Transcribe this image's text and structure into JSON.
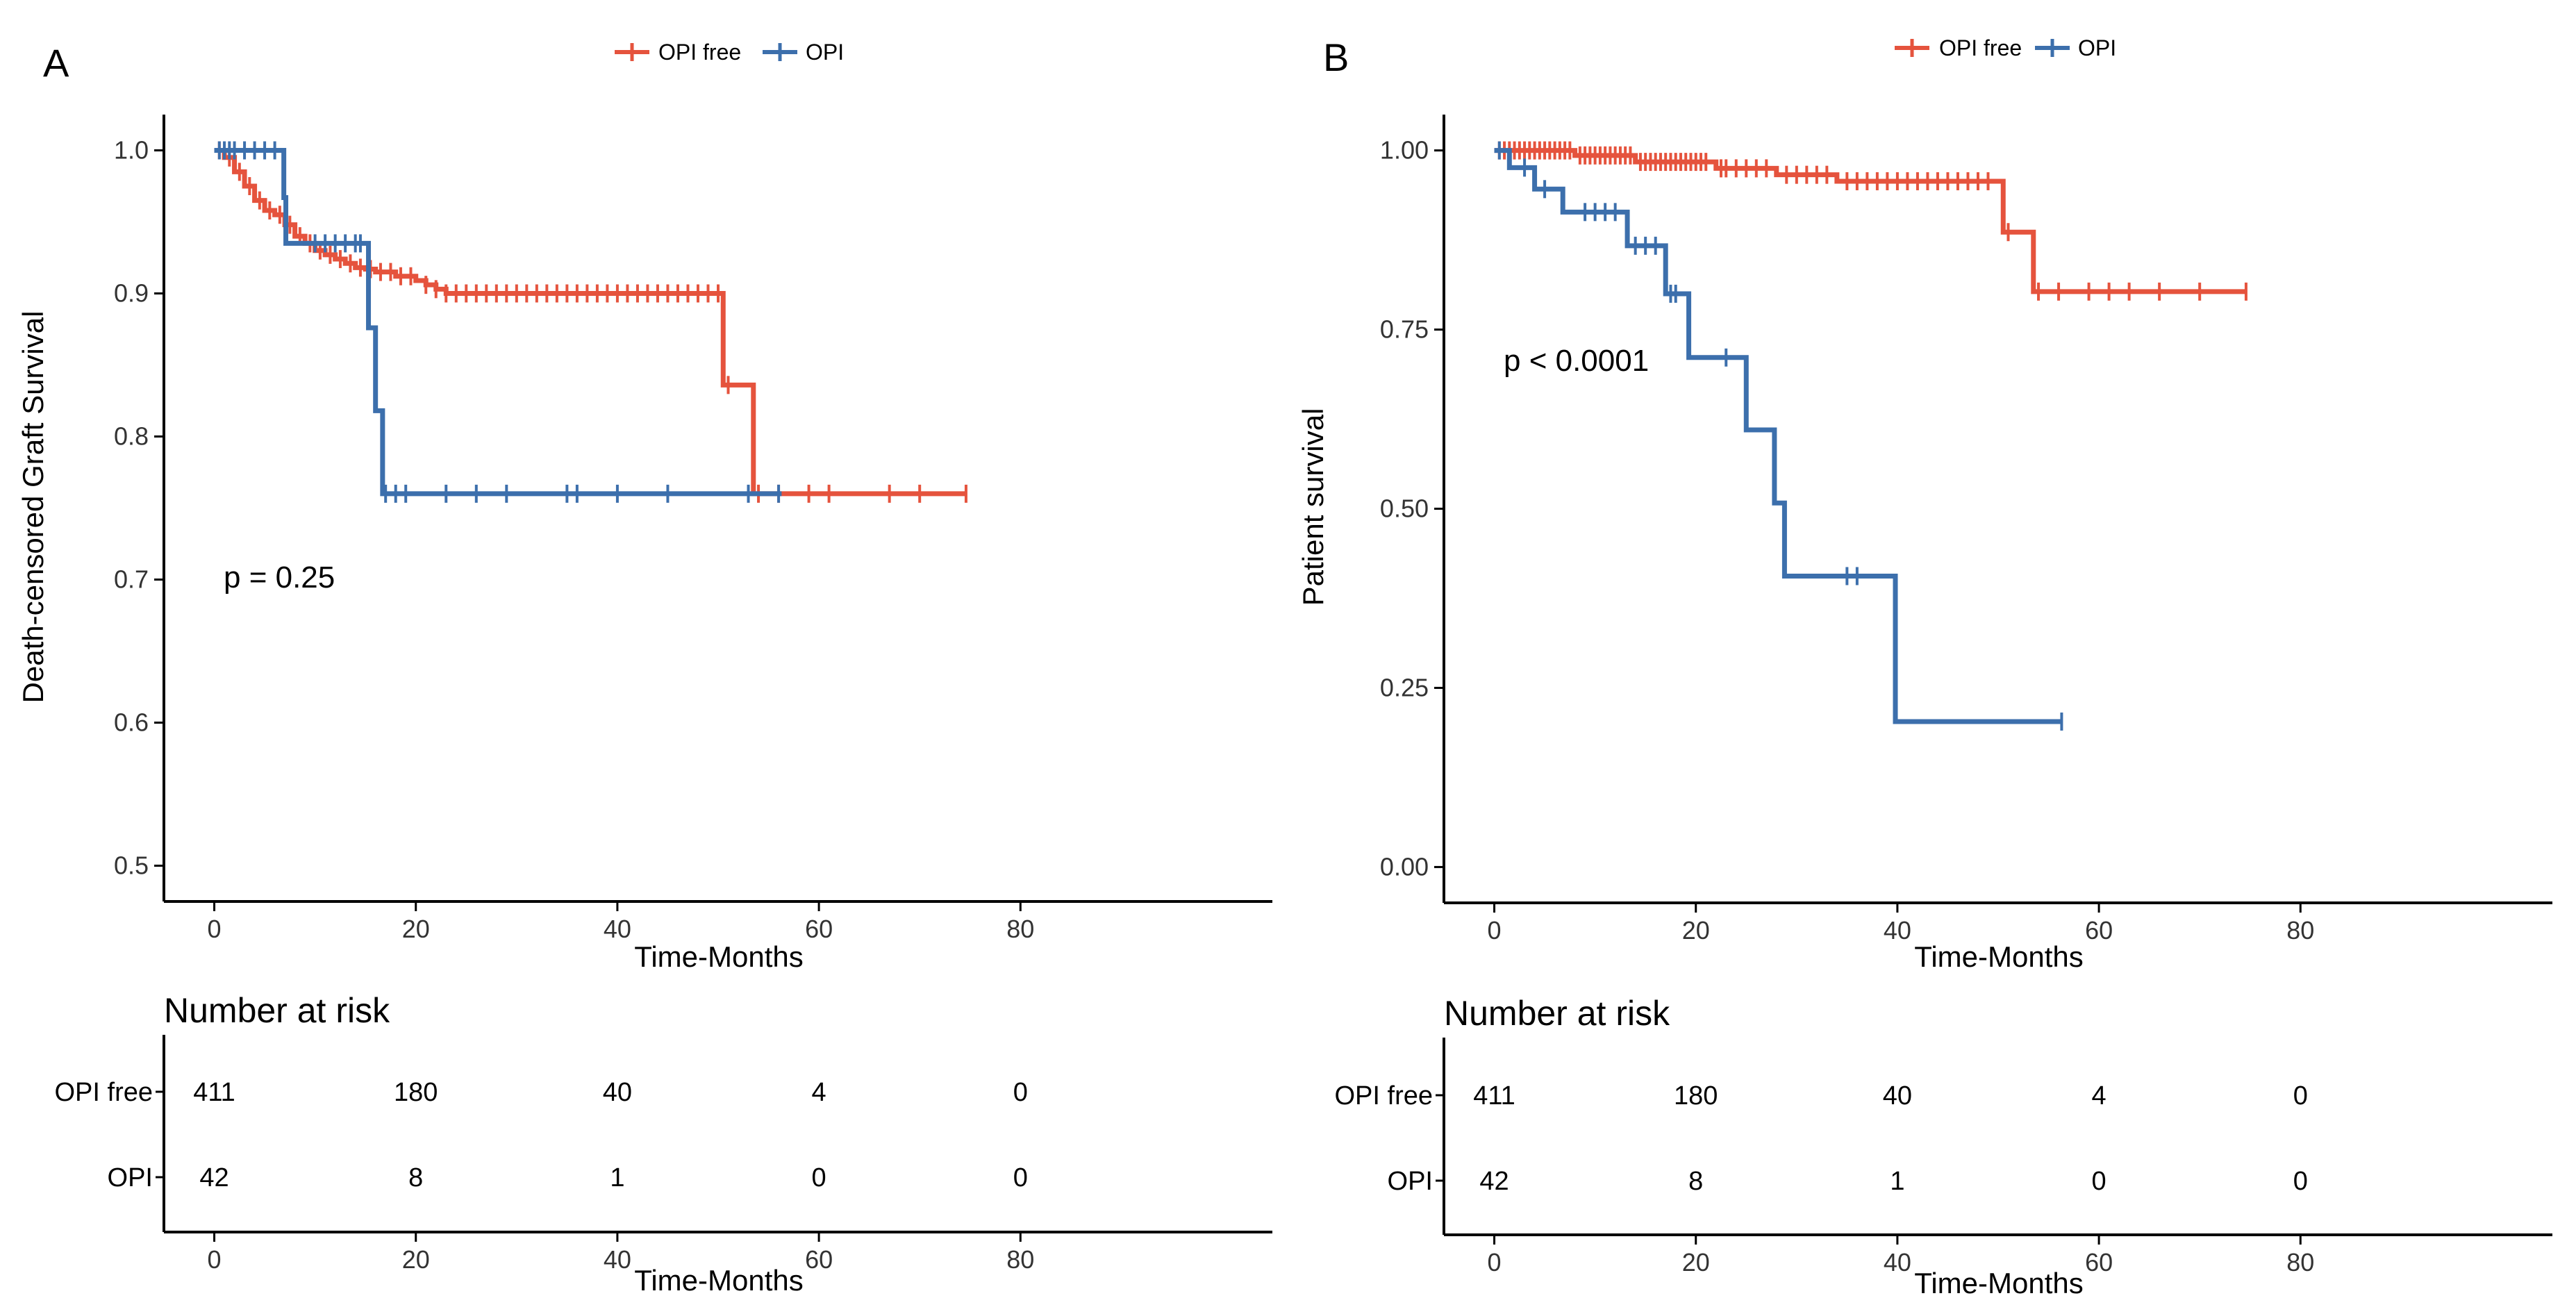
{
  "chart_data": [
    {
      "type": "line",
      "subtype": "kaplan-meier",
      "panel_label": "A",
      "legend": [
        {
          "name": "OPI free",
          "color": "#e5533d"
        },
        {
          "name": "OPI",
          "color": "#3c6fac"
        }
      ],
      "xlabel": "Time-Months",
      "ylabel": "Death-censored Graft Survival",
      "xlim": [
        -5,
        105
      ],
      "ylim": [
        0.475,
        1.025
      ],
      "xticks": [
        0,
        20,
        40,
        60,
        80
      ],
      "yticks": [
        0.5,
        0.6,
        0.7,
        0.8,
        0.9,
        1.0
      ],
      "ytick_labels": [
        "0.5",
        "0.6",
        "0.7",
        "0.8",
        "0.9",
        "1.0"
      ],
      "annotation": "p = 0.25",
      "annotation_pos": [
        1,
        0.7
      ],
      "series": [
        {
          "name": "OPI free",
          "color": "#e5533d",
          "steps": [
            [
              0,
              1.0
            ],
            [
              1,
              0.995
            ],
            [
              2,
              0.985
            ],
            [
              3,
              0.975
            ],
            [
              4,
              0.965
            ],
            [
              5,
              0.958
            ],
            [
              6,
              0.955
            ],
            [
              7,
              0.948
            ],
            [
              8,
              0.94
            ],
            [
              9,
              0.935
            ],
            [
              10,
              0.93
            ],
            [
              11,
              0.927
            ],
            [
              12,
              0.924
            ],
            [
              13,
              0.921
            ],
            [
              14,
              0.918
            ],
            [
              15,
              0.917
            ],
            [
              16,
              0.915
            ],
            [
              18,
              0.912
            ],
            [
              20,
              0.909
            ],
            [
              21,
              0.906
            ],
            [
              22,
              0.903
            ],
            [
              23,
              0.9
            ],
            [
              50.5,
              0.836
            ],
            [
              53.5,
              0.76
            ],
            [
              74.6,
              0.76
            ]
          ],
          "censor": [
            0.5,
            1.5,
            2.5,
            3.5,
            4.5,
            5.5,
            6.5,
            7.5,
            8.5,
            9.5,
            10.5,
            11.5,
            12.5,
            13.5,
            14.5,
            15.5,
            16.5,
            17.5,
            18.5,
            19.5,
            21,
            22,
            23,
            24,
            25,
            26,
            27,
            28,
            29,
            30,
            31,
            32,
            33,
            34,
            35,
            36,
            37,
            38,
            39,
            40,
            41,
            42,
            43,
            44,
            45,
            46,
            47,
            48,
            49,
            50,
            51,
            54,
            56,
            59,
            61,
            67,
            70,
            74.6
          ]
        },
        {
          "name": "OPI",
          "color": "#3c6fac",
          "steps": [
            [
              0,
              1.0
            ],
            [
              6.9,
              0.967
            ],
            [
              7.1,
              0.935
            ],
            [
              15.3,
              0.876
            ],
            [
              16.0,
              0.818
            ],
            [
              16.7,
              0.76
            ],
            [
              56.3,
              0.76
            ]
          ],
          "censor": [
            0.5,
            1,
            1.5,
            2,
            3,
            4,
            5,
            6,
            10,
            11,
            12,
            13,
            14,
            14.5,
            17,
            18,
            19,
            23,
            26,
            29,
            35,
            36,
            40,
            45,
            53,
            56
          ]
        }
      ],
      "risk_table": {
        "title": "Number at risk",
        "time_points": [
          0,
          20,
          40,
          60,
          80
        ],
        "rows": [
          {
            "label": "OPI free",
            "color": "#e5533d",
            "values": [
              "411",
              "180",
              "40",
              "4",
              "0"
            ]
          },
          {
            "label": "OPI",
            "color": "#3c6fac",
            "values": [
              "42",
              "8",
              "1",
              "0",
              "0"
            ]
          }
        ],
        "xlabel": "Time-Months",
        "xticks": [
          0,
          20,
          40,
          60,
          80
        ]
      }
    },
    {
      "type": "line",
      "subtype": "kaplan-meier",
      "panel_label": "B",
      "legend": [
        {
          "name": "OPI free",
          "color": "#e5533d"
        },
        {
          "name": "OPI",
          "color": "#3c6fac"
        }
      ],
      "xlabel": "Time-Months",
      "ylabel": "Patient survival",
      "xlim": [
        -5,
        105
      ],
      "ylim": [
        -0.05,
        1.05
      ],
      "xticks": [
        0,
        20,
        40,
        60,
        80
      ],
      "yticks": [
        0,
        0.25,
        0.5,
        0.75,
        1.0
      ],
      "ytick_labels": [
        "0.00",
        "0.25",
        "0.50",
        "0.75",
        "1.00"
      ],
      "annotation": "p < 0.0001",
      "annotation_pos": [
        1,
        0.7
      ],
      "series": [
        {
          "name": "OPI free",
          "color": "#e5533d",
          "steps": [
            [
              0,
              1.0
            ],
            [
              8,
              0.993
            ],
            [
              14,
              0.984
            ],
            [
              22,
              0.975
            ],
            [
              28,
              0.966
            ],
            [
              34,
              0.957
            ],
            [
              50.5,
              0.886
            ],
            [
              53.5,
              0.803
            ],
            [
              74.6,
              0.803
            ]
          ],
          "censor": [
            0.5,
            1,
            1.5,
            2,
            2.5,
            3,
            3.5,
            4,
            4.5,
            5,
            5.5,
            6,
            6.5,
            7,
            7.5,
            8.5,
            9,
            9.5,
            10,
            10.5,
            11,
            11.5,
            12,
            12.5,
            13,
            13.5,
            14.5,
            15,
            15.5,
            16,
            16.5,
            17,
            17.5,
            18,
            18.5,
            19,
            19.5,
            20,
            20.5,
            21,
            22.5,
            23,
            24,
            25,
            26,
            27,
            29,
            30,
            31,
            32,
            33,
            35,
            36,
            37,
            38,
            39,
            40,
            41,
            42,
            43,
            44,
            45,
            46,
            47,
            48,
            49,
            51,
            54,
            56,
            59,
            61,
            63,
            66,
            70,
            74.6
          ]
        },
        {
          "name": "OPI",
          "color": "#3c6fac",
          "steps": [
            [
              0,
              1.0
            ],
            [
              1.5,
              0.976
            ],
            [
              4,
              0.946
            ],
            [
              6.8,
              0.914
            ],
            [
              13.2,
              0.867
            ],
            [
              17,
              0.8
            ],
            [
              19.3,
              0.711
            ],
            [
              25,
              0.61
            ],
            [
              27.8,
              0.508
            ],
            [
              28.8,
              0.406
            ],
            [
              39.8,
              0.203
            ],
            [
              56.3,
              0.203
            ]
          ],
          "censor": [
            0.5,
            3,
            5,
            9,
            10,
            11,
            12,
            14,
            15,
            16,
            17.5,
            18,
            23,
            35,
            36,
            56.3
          ]
        }
      ],
      "risk_table": {
        "title": "Number at risk",
        "time_points": [
          0,
          20,
          40,
          60,
          80
        ],
        "rows": [
          {
            "label": "OPI free",
            "color": "#e5533d",
            "values": [
              "411",
              "180",
              "40",
              "4",
              "0"
            ]
          },
          {
            "label": "OPI",
            "color": "#3c6fac",
            "values": [
              "42",
              "8",
              "1",
              "0",
              "0"
            ]
          }
        ],
        "xlabel": "Time-Months",
        "xticks": [
          0,
          20,
          40,
          60,
          80
        ]
      }
    }
  ]
}
